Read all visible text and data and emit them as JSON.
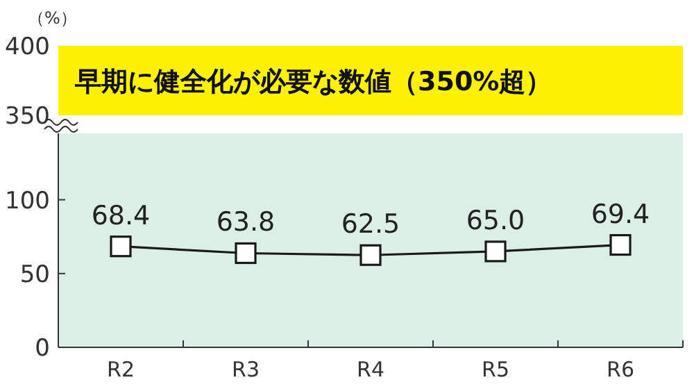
{
  "chart_data": [
    {
      "type": "other",
      "ylabel": "（%）",
      "annotations": [
        "400",
        "350",
        "早期に健全化が必要な数値（350%超）"
      ]
    },
    {
      "type": "line",
      "categories": [
        "R2",
        "R3",
        "R4",
        "R5",
        "R6"
      ],
      "series": [
        {
          "color": "#1a1a1a",
          "values": [
            68.4,
            63.8,
            62.5,
            65.0,
            69.4
          ],
          "value_labels": [
            "68.4",
            "63.8",
            "62.5",
            "65.0",
            "69.4"
          ]
        }
      ],
      "ylim": [
        0,
        145
      ],
      "yticks": [
        0,
        50,
        100
      ],
      "bands": [
        {
          "axis": "y",
          "from": 0,
          "to": 145,
          "color": "#dcefe6"
        }
      ],
      "marker": "square",
      "line_style": "solid"
    }
  ]
}
